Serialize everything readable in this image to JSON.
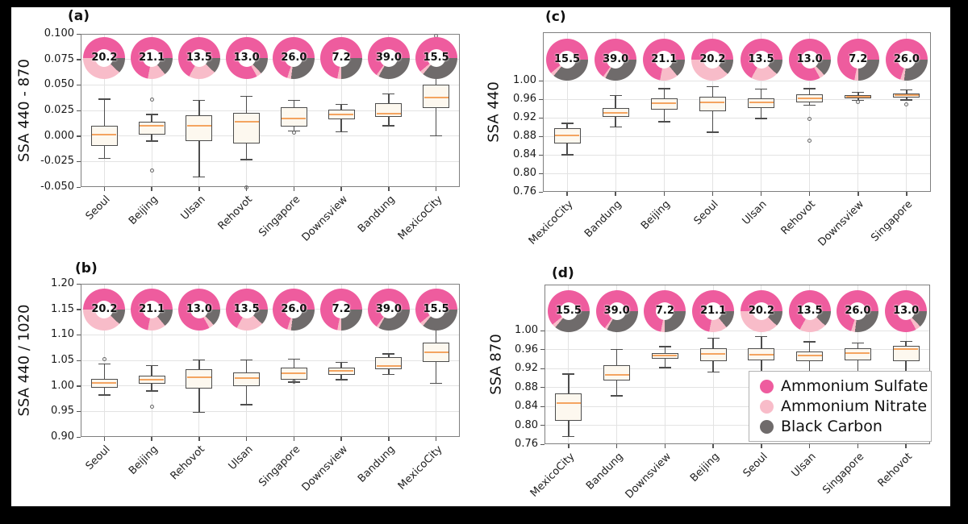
{
  "colors": {
    "ammonium_sulfate": "#ee5c9e",
    "ammonium_nitrate": "#f8bcc9",
    "black_carbon": "#6f6b6b",
    "median_line": "#f4a460",
    "box_fill": "#fdf8ef",
    "box_edge": "#4d4d4d",
    "grid": "#e3e3e3",
    "spine": "#7f7f7f",
    "figure_background": "#ffffff",
    "page_background": "#000000"
  },
  "legend": {
    "items": [
      {
        "label": "Ammonium Sulfate",
        "color_key": "ammonium_sulfate"
      },
      {
        "label": "Ammonium Nitrate",
        "color_key": "ammonium_nitrate"
      },
      {
        "label": "Black Carbon",
        "color_key": "black_carbon"
      }
    ]
  },
  "aerosol_composition": {
    "Seoul": {
      "black_carbon": 12,
      "ammonium_nitrate": 38,
      "ammonium_sulfate": 50
    },
    "Beijing": {
      "black_carbon": 14,
      "ammonium_nitrate": 14,
      "ammonium_sulfate": 72
    },
    "Ulsan": {
      "black_carbon": 12,
      "ammonium_nitrate": 21,
      "ammonium_sulfate": 67
    },
    "Rehovot": {
      "black_carbon": 13,
      "ammonium_nitrate": 4,
      "ammonium_sulfate": 83
    },
    "Singapore": {
      "black_carbon": 27,
      "ammonium_nitrate": 3,
      "ammonium_sulfate": 70
    },
    "Downsview": {
      "black_carbon": 25,
      "ammonium_nitrate": 3,
      "ammonium_sulfate": 72
    },
    "Bandung": {
      "black_carbon": 33,
      "ammonium_nitrate": 2,
      "ammonium_sulfate": 65
    },
    "MexicoCity": {
      "black_carbon": 36,
      "ammonium_nitrate": 3,
      "ammonium_sulfate": 61
    }
  },
  "chart_data": [
    {
      "type": "bar",
      "subtype": "boxplot-with-donuts",
      "panel_label": "(a)",
      "ylabel": "SSA 440 - 870",
      "ylim": [
        -0.05,
        0.1
      ],
      "yticks": [
        "0.100",
        "0.075",
        "0.050",
        "0.025",
        "0.000",
        "-0.025",
        "-0.050"
      ],
      "grid": true,
      "categories": [
        "Seoul",
        "Beijing",
        "Ulsan",
        "Rehovot",
        "Singapore",
        "Downsview",
        "Bandung",
        "MexicoCity"
      ],
      "donut_values": [
        "20.2",
        "21.1",
        "13.5",
        "13.0",
        "26.0",
        "7.2",
        "39.0",
        "15.5"
      ],
      "boxes": [
        {
          "whislo": -0.022,
          "q1": -0.01,
          "med": 0.001,
          "q3": 0.01,
          "whishi": 0.036,
          "fliers": []
        },
        {
          "whislo": -0.005,
          "q1": 0.001,
          "med": 0.01,
          "q3": 0.014,
          "whishi": 0.021,
          "fliers": [
            0.036,
            -0.034
          ]
        },
        {
          "whislo": -0.04,
          "q1": -0.005,
          "med": 0.01,
          "q3": 0.02,
          "whishi": 0.035,
          "fliers": []
        },
        {
          "whislo": -0.023,
          "q1": -0.007,
          "med": 0.014,
          "q3": 0.023,
          "whishi": 0.039,
          "fliers": [
            -0.05
          ]
        },
        {
          "whislo": 0.005,
          "q1": 0.009,
          "med": 0.017,
          "q3": 0.028,
          "whishi": 0.035,
          "fliers": [
            0.003
          ]
        },
        {
          "whislo": 0.004,
          "q1": 0.016,
          "med": 0.021,
          "q3": 0.026,
          "whishi": 0.031,
          "fliers": []
        },
        {
          "whislo": 0.01,
          "q1": 0.019,
          "med": 0.022,
          "q3": 0.032,
          "whishi": 0.041,
          "fliers": []
        },
        {
          "whislo": 0.0,
          "q1": 0.027,
          "med": 0.038,
          "q3": 0.05,
          "whishi": 0.093,
          "fliers": [
            0.098
          ]
        }
      ]
    },
    {
      "type": "bar",
      "subtype": "boxplot-with-donuts",
      "panel_label": "(b)",
      "ylabel": "SSA 440 / 1020",
      "ylim": [
        0.9,
        1.2
      ],
      "yticks": [
        "1.20",
        "1.15",
        "1.10",
        "1.05",
        "1.00",
        "0.95",
        "0.90"
      ],
      "grid": true,
      "categories": [
        "Seoul",
        "Beijing",
        "Rehovot",
        "Ulsan",
        "Singapore",
        "Downsview",
        "Bandung",
        "MexicoCity"
      ],
      "donut_values": [
        "20.2",
        "21.1",
        "13.0",
        "13.5",
        "26.0",
        "7.2",
        "39.0",
        "15.5"
      ],
      "boxes": [
        {
          "whislo": 0.982,
          "q1": 0.997,
          "med": 1.006,
          "q3": 1.014,
          "whishi": 1.043,
          "fliers": [
            1.052
          ]
        },
        {
          "whislo": 0.99,
          "q1": 1.004,
          "med": 1.012,
          "q3": 1.02,
          "whishi": 1.04,
          "fliers": [
            0.96
          ]
        },
        {
          "whislo": 0.948,
          "q1": 0.995,
          "med": 1.017,
          "q3": 1.032,
          "whishi": 1.051,
          "fliers": []
        },
        {
          "whislo": 0.963,
          "q1": 0.999,
          "med": 1.016,
          "q3": 1.027,
          "whishi": 1.051,
          "fliers": []
        },
        {
          "whislo": 1.007,
          "q1": 1.012,
          "med": 1.024,
          "q3": 1.036,
          "whishi": 1.052,
          "fliers": [
            1.008
          ]
        },
        {
          "whislo": 1.012,
          "q1": 1.021,
          "med": 1.029,
          "q3": 1.036,
          "whishi": 1.046,
          "fliers": []
        },
        {
          "whislo": 1.022,
          "q1": 1.032,
          "med": 1.039,
          "q3": 1.056,
          "whishi": 1.063,
          "fliers": []
        },
        {
          "whislo": 1.005,
          "q1": 1.047,
          "med": 1.066,
          "q3": 1.084,
          "whishi": 1.112,
          "fliers": []
        }
      ]
    },
    {
      "type": "bar",
      "subtype": "boxplot-with-donuts",
      "panel_label": "(c)",
      "ylabel": "SSA 440",
      "ylim": [
        0.76,
        1.0
      ],
      "yticks": [
        "1.00",
        "0.96",
        "0.92",
        "0.88",
        "0.84",
        "0.80",
        "0.76"
      ],
      "grid": true,
      "categories": [
        "MexicoCity",
        "Bandung",
        "Beijing",
        "Seoul",
        "Ulsan",
        "Rehovot",
        "Downsview",
        "Singapore"
      ],
      "donut_values": [
        "15.5",
        "39.0",
        "21.1",
        "20.2",
        "13.5",
        "13.0",
        "7.2",
        "26.0"
      ],
      "boxes": [
        {
          "whislo": 0.84,
          "q1": 0.864,
          "med": 0.882,
          "q3": 0.898,
          "whishi": 0.908,
          "fliers": []
        },
        {
          "whislo": 0.9,
          "q1": 0.921,
          "med": 0.931,
          "q3": 0.941,
          "whishi": 0.968,
          "fliers": []
        },
        {
          "whislo": 0.911,
          "q1": 0.938,
          "med": 0.952,
          "q3": 0.961,
          "whishi": 0.983,
          "fliers": []
        },
        {
          "whislo": 0.889,
          "q1": 0.934,
          "med": 0.953,
          "q3": 0.966,
          "whishi": 0.987,
          "fliers": []
        },
        {
          "whislo": 0.918,
          "q1": 0.941,
          "med": 0.953,
          "q3": 0.962,
          "whishi": 0.982,
          "fliers": []
        },
        {
          "whislo": 0.947,
          "q1": 0.953,
          "med": 0.962,
          "q3": 0.97,
          "whishi": 0.983,
          "fliers": [
            0.918,
            0.87
          ]
        },
        {
          "whislo": 0.957,
          "q1": 0.961,
          "med": 0.965,
          "q3": 0.969,
          "whishi": 0.975,
          "fliers": [
            0.954
          ]
        },
        {
          "whislo": 0.958,
          "q1": 0.963,
          "med": 0.968,
          "q3": 0.972,
          "whishi": 0.98,
          "fliers": [
            0.949
          ]
        }
      ]
    },
    {
      "type": "bar",
      "subtype": "boxplot-with-donuts",
      "panel_label": "(d)",
      "ylabel": "SSA 870",
      "ylim": [
        0.76,
        1.0
      ],
      "yticks": [
        "1.00",
        "0.96",
        "0.92",
        "0.88",
        "0.84",
        "0.80",
        "0.76"
      ],
      "grid": true,
      "categories": [
        "MexicoCity",
        "Bandung",
        "Downsview",
        "Beijing",
        "Seoul",
        "Ulsan",
        "Singapore",
        "Rehovot"
      ],
      "donut_values": [
        "15.5",
        "39.0",
        "7.2",
        "21.1",
        "20.2",
        "13.5",
        "26.0",
        "13.0"
      ],
      "boxes": [
        {
          "whislo": 0.776,
          "q1": 0.81,
          "med": 0.846,
          "q3": 0.868,
          "whishi": 0.908,
          "fliers": []
        },
        {
          "whislo": 0.862,
          "q1": 0.894,
          "med": 0.906,
          "q3": 0.926,
          "whishi": 0.96,
          "fliers": []
        },
        {
          "whislo": 0.922,
          "q1": 0.94,
          "med": 0.947,
          "q3": 0.953,
          "whishi": 0.966,
          "fliers": []
        },
        {
          "whislo": 0.912,
          "q1": 0.936,
          "med": 0.95,
          "q3": 0.962,
          "whishi": 0.984,
          "fliers": []
        },
        {
          "whislo": 0.91,
          "q1": 0.937,
          "med": 0.949,
          "q3": 0.962,
          "whishi": 0.987,
          "fliers": []
        },
        {
          "whislo": 0.914,
          "q1": 0.936,
          "med": 0.947,
          "q3": 0.956,
          "whishi": 0.976,
          "fliers": []
        },
        {
          "whislo": 0.91,
          "q1": 0.937,
          "med": 0.952,
          "q3": 0.962,
          "whishi": 0.974,
          "fliers": []
        },
        {
          "whislo": 0.912,
          "q1": 0.935,
          "med": 0.961,
          "q3": 0.968,
          "whishi": 0.977,
          "fliers": []
        }
      ]
    }
  ]
}
